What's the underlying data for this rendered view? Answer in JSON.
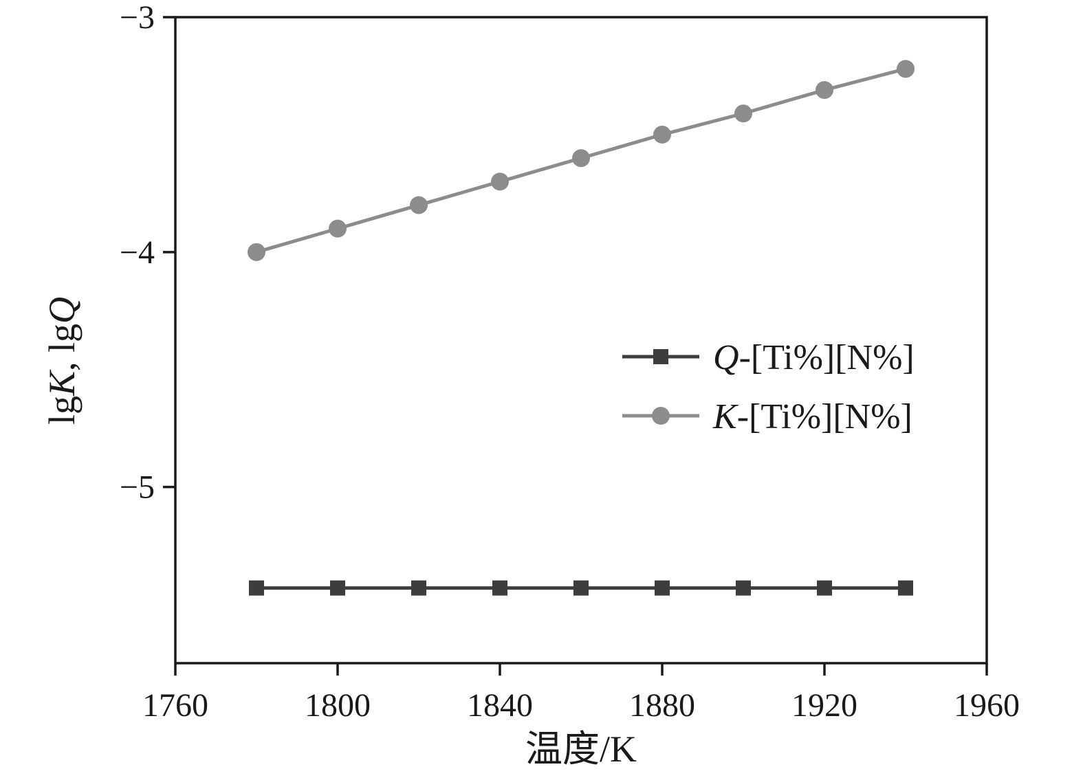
{
  "chart_data": {
    "type": "line",
    "title": "",
    "xlabel": "温度/K",
    "ylabel": "lgK, lgQ",
    "ylabel_rich": [
      {
        "t": "lg",
        "i": false
      },
      {
        "t": "K",
        "i": true
      },
      {
        "t": ", lg",
        "i": false
      },
      {
        "t": "Q",
        "i": true
      }
    ],
    "xlim": [
      1760,
      1960
    ],
    "ylim": [
      -5.75,
      -3
    ],
    "xticks": [
      1760,
      1800,
      1840,
      1880,
      1920,
      1960
    ],
    "yticks": [
      -3,
      -4,
      -5
    ],
    "grid": false,
    "legend_position": "inside-center-right",
    "x": [
      1780,
      1800,
      1820,
      1840,
      1860,
      1880,
      1900,
      1920,
      1940
    ],
    "series": [
      {
        "name": "Q-[Ti%][N%]",
        "marker": "square",
        "color": "#3d3d3f",
        "values": [
          -5.43,
          -5.43,
          -5.43,
          -5.43,
          -5.43,
          -5.43,
          -5.43,
          -5.43,
          -5.43
        ]
      },
      {
        "name": "K-[Ti%][N%]",
        "marker": "circle",
        "color": "#8c8c8c",
        "values": [
          -4.0,
          -3.9,
          -3.8,
          -3.7,
          -3.6,
          -3.5,
          -3.41,
          -3.31,
          -3.22
        ]
      }
    ],
    "axis_color": "#1a1a1a"
  }
}
